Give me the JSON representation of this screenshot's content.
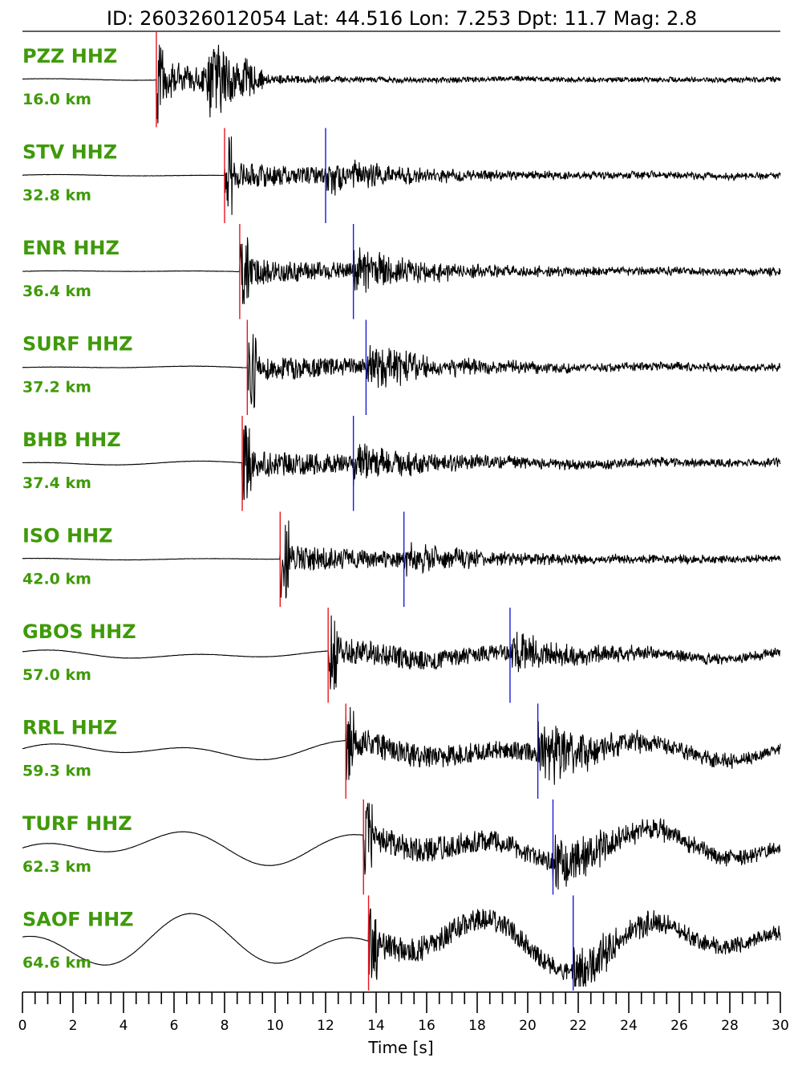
{
  "chart_data": {
    "type": "line",
    "title": "ID: 260326012054 Lat:  44.516 Lon:   7.253 Dpt:    11.7 Mag:   2.8",
    "xlabel": "Time [s]",
    "xlim": [
      0,
      30
    ],
    "x_ticks": [
      "0",
      "2",
      "4",
      "6",
      "8",
      "10",
      "12",
      "14",
      "16",
      "18",
      "20",
      "22",
      "24",
      "26",
      "28",
      "30"
    ],
    "minor_tick_step": 0.5,
    "colors": {
      "label": "#3f9a0a",
      "p_pick": "#e8141e",
      "s_pick": "#1a1ad6",
      "trace": "#000000"
    },
    "traces": [
      {
        "station": "PZZ HHZ",
        "distance": "16.0 km",
        "p_pick": 5.3,
        "s_pick": null,
        "noise": 0.02,
        "coda": 0.9,
        "env_decay": 2.5
      },
      {
        "station": "STV HHZ",
        "distance": "32.8 km",
        "p_pick": 8.0,
        "s_pick": 12.0,
        "noise": 0.02,
        "coda": 0.35,
        "env_decay": 5
      },
      {
        "station": "ENR HHZ",
        "distance": "36.4 km",
        "p_pick": 8.6,
        "s_pick": 13.1,
        "noise": 0.02,
        "coda": 0.45,
        "env_decay": 6
      },
      {
        "station": "SURF HHZ",
        "distance": "37.2 km",
        "p_pick": 8.9,
        "s_pick": 13.6,
        "noise": 0.03,
        "coda": 0.5,
        "env_decay": 6
      },
      {
        "station": "BHB HHZ",
        "distance": "37.4 km",
        "p_pick": 8.7,
        "s_pick": 13.1,
        "noise": 0.05,
        "coda": 0.4,
        "env_decay": 7
      },
      {
        "station": "ISO HHZ",
        "distance": "42.0 km",
        "p_pick": 10.2,
        "s_pick": 15.1,
        "noise": 0.02,
        "coda": 0.3,
        "env_decay": 6
      },
      {
        "station": "GBOS HHZ",
        "distance": "57.0 km",
        "p_pick": 12.1,
        "s_pick": 19.3,
        "noise": 0.12,
        "coda": 0.4,
        "env_decay": 8
      },
      {
        "station": "RRL HHZ",
        "distance": "59.3 km",
        "p_pick": 12.8,
        "s_pick": 20.4,
        "noise": 0.25,
        "coda": 0.7,
        "env_decay": 12
      },
      {
        "station": "TURF HHZ",
        "distance": "62.3 km",
        "p_pick": 13.5,
        "s_pick": 21.0,
        "noise": 0.45,
        "coda": 0.55,
        "env_decay": 14
      },
      {
        "station": "SAOF HHZ",
        "distance": "64.6 km",
        "p_pick": 13.7,
        "s_pick": 21.8,
        "noise": 0.7,
        "coda": 0.55,
        "env_decay": 14
      }
    ]
  }
}
